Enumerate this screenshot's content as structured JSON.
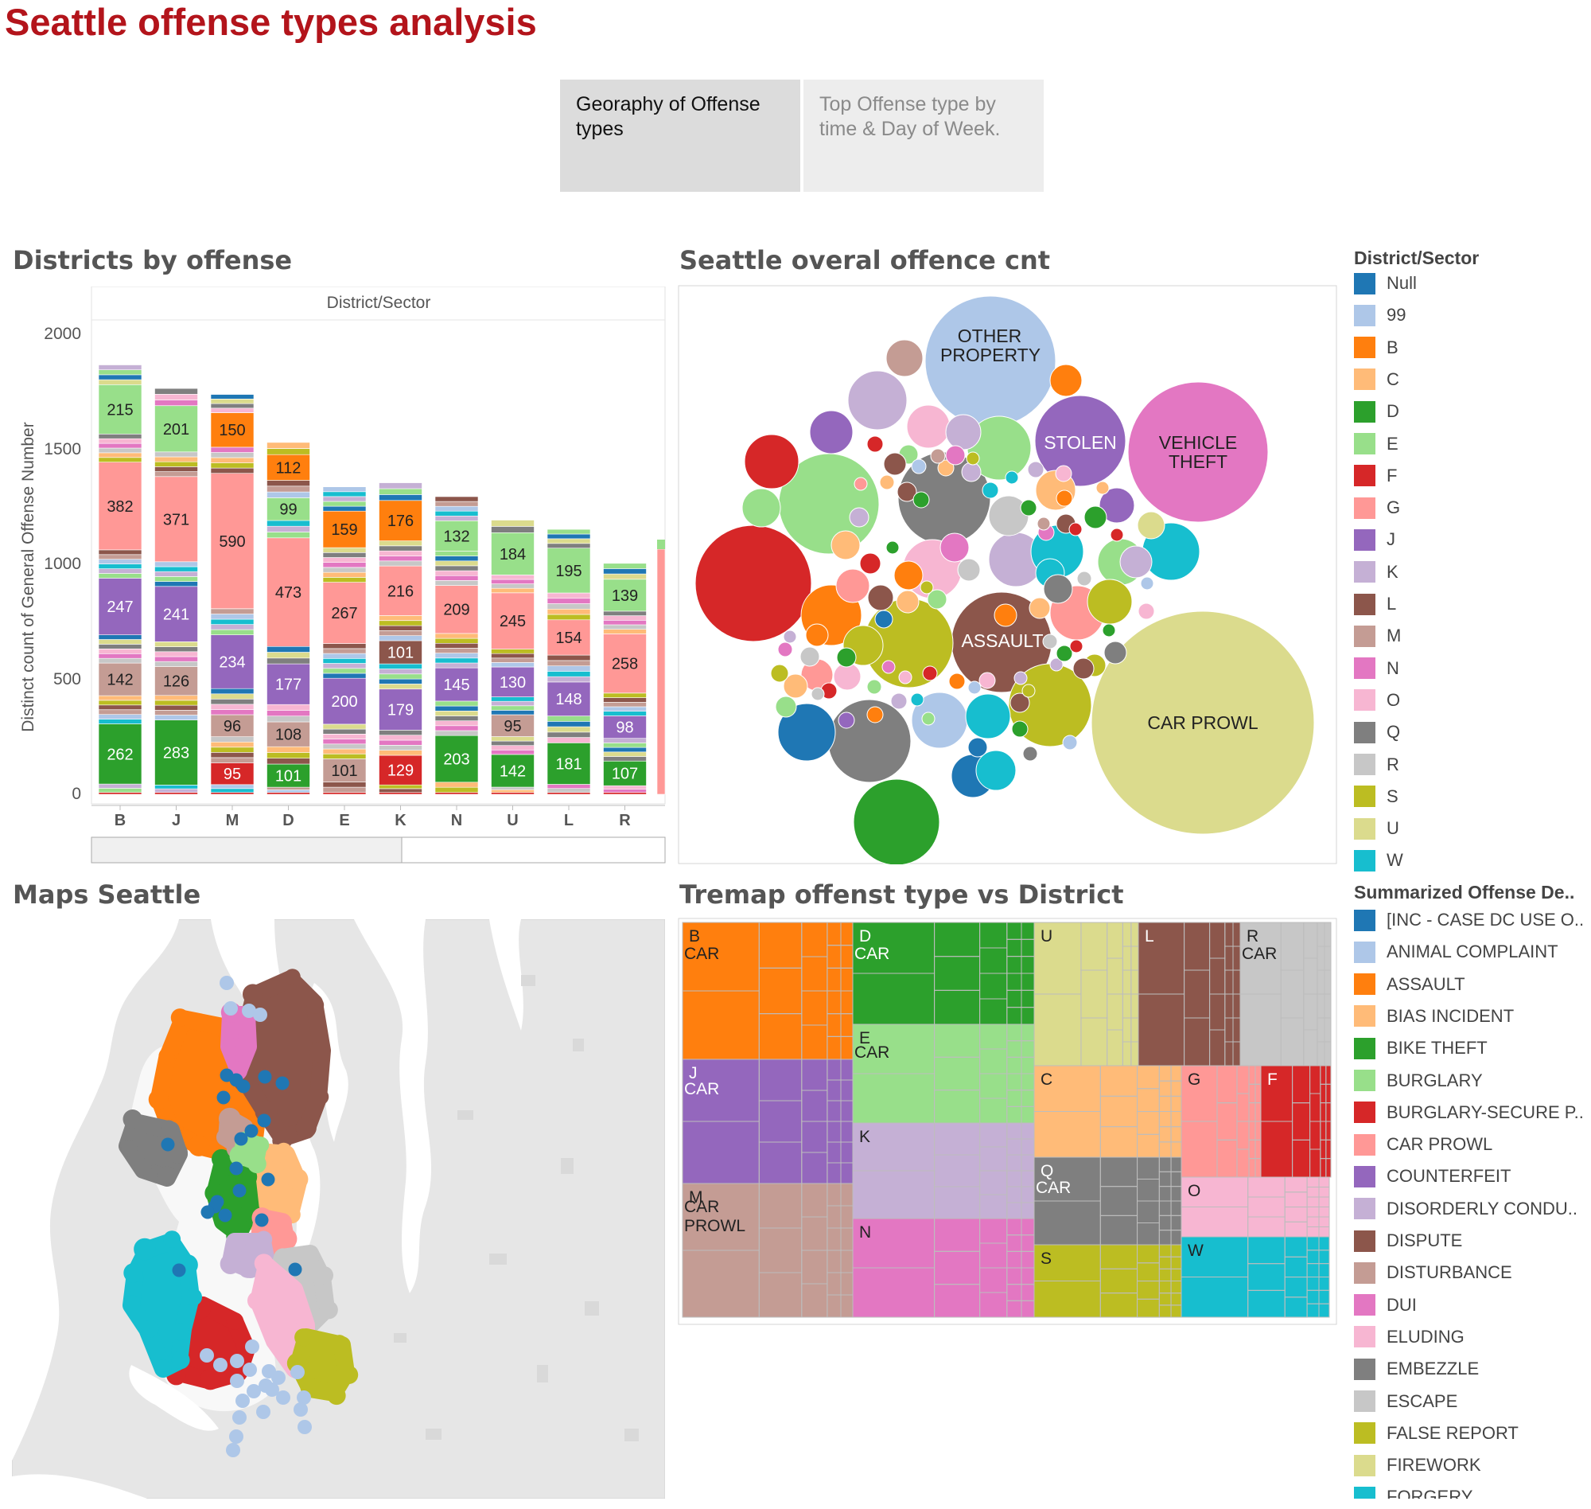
{
  "title": "Seattle offense types analysis",
  "tabs": [
    {
      "label": "Georaphy of Offense types"
    },
    {
      "label": "Top Offense type by time & Day of Week."
    }
  ],
  "sections": {
    "districts_by_offense": "Districts by offense",
    "bubble": "Seattle overal offence cnt",
    "map": "Maps Seattle",
    "treemap": "Tremap offenst type vs District"
  },
  "bar_chart": {
    "header": "District/Sector",
    "y_axis_label": "Distinct count of General Offense Number",
    "y_ticks": [
      "0",
      "500",
      "1000",
      "1500",
      "2000"
    ]
  },
  "chart_data": {
    "type": "bar",
    "stacked": true,
    "categories": [
      "B",
      "J",
      "M",
      "D",
      "E",
      "K",
      "N",
      "U",
      "L",
      "R"
    ],
    "totals": [
      1985,
      1867,
      1847,
      1600,
      1482,
      1458,
      1438,
      1264,
      1263,
      1097
    ],
    "ylim": [
      0,
      2000
    ],
    "labeled_segments": [
      {
        "category": "B",
        "values": [
          262,
          142,
          247,
          382,
          215
        ]
      },
      {
        "category": "J",
        "values": [
          283,
          126,
          241,
          371,
          201
        ]
      },
      {
        "category": "M",
        "values": [
          95,
          96,
          234,
          590,
          150
        ]
      },
      {
        "category": "D",
        "values": [
          101,
          108,
          177,
          473,
          99,
          112
        ]
      },
      {
        "category": "E",
        "values": [
          101,
          200,
          267,
          159
        ]
      },
      {
        "category": "K",
        "values": [
          129,
          179,
          101,
          216,
          176
        ]
      },
      {
        "category": "N",
        "values": [
          203,
          145,
          209,
          132
        ]
      },
      {
        "category": "U",
        "values": [
          142,
          95,
          130,
          245,
          184
        ]
      },
      {
        "category": "L",
        "values": [
          181,
          148,
          154,
          195
        ]
      },
      {
        "category": "R",
        "values": [
          107,
          98,
          258,
          139
        ]
      }
    ]
  },
  "bubbles": {
    "labels": {
      "other_property": [
        "OTHER",
        "PROPERTY"
      ],
      "stolen": "STOLEN",
      "vehicle_theft": [
        "VEHICLE",
        "THEFT"
      ],
      "assault": "ASSAULT",
      "car_prowl": "CAR PROWL"
    }
  },
  "treemap": {
    "labels": [
      "B",
      "CAR",
      "D",
      "U",
      "L",
      "R",
      "J",
      "E",
      "K",
      "C",
      "G",
      "F",
      "Q",
      "M",
      "PROWL",
      "N",
      "S",
      "O",
      "W"
    ]
  },
  "legend_district": {
    "title": "District/Sector",
    "items": [
      {
        "label": "Null",
        "color": "#1f77b4"
      },
      {
        "label": "99",
        "color": "#aec7e8"
      },
      {
        "label": "B",
        "color": "#ff7f0e"
      },
      {
        "label": "C",
        "color": "#ffbb78"
      },
      {
        "label": "D",
        "color": "#2ca02c"
      },
      {
        "label": "E",
        "color": "#98df8a"
      },
      {
        "label": "F",
        "color": "#d62728"
      },
      {
        "label": "G",
        "color": "#ff9896"
      },
      {
        "label": "J",
        "color": "#9467bd"
      },
      {
        "label": "K",
        "color": "#c5b0d5"
      },
      {
        "label": "L",
        "color": "#8c564b"
      },
      {
        "label": "M",
        "color": "#c49c94"
      },
      {
        "label": "N",
        "color": "#e377c2"
      },
      {
        "label": "O",
        "color": "#f7b6d2"
      },
      {
        "label": "Q",
        "color": "#7f7f7f"
      },
      {
        "label": "R",
        "color": "#c7c7c7"
      },
      {
        "label": "S",
        "color": "#bcbd22"
      },
      {
        "label": "U",
        "color": "#dbdb8d"
      },
      {
        "label": "W",
        "color": "#17becf"
      }
    ]
  },
  "legend_offense": {
    "title": "Summarized Offense De..",
    "items": [
      {
        "label": "[INC - CASE DC USE O..",
        "color": "#1f77b4"
      },
      {
        "label": "ANIMAL COMPLAINT",
        "color": "#aec7e8"
      },
      {
        "label": "ASSAULT",
        "color": "#ff7f0e"
      },
      {
        "label": "BIAS INCIDENT",
        "color": "#ffbb78"
      },
      {
        "label": "BIKE THEFT",
        "color": "#2ca02c"
      },
      {
        "label": "BURGLARY",
        "color": "#98df8a"
      },
      {
        "label": "BURGLARY-SECURE P..",
        "color": "#d62728"
      },
      {
        "label": "CAR PROWL",
        "color": "#ff9896"
      },
      {
        "label": "COUNTERFEIT",
        "color": "#9467bd"
      },
      {
        "label": "DISORDERLY CONDU..",
        "color": "#c5b0d5"
      },
      {
        "label": "DISPUTE",
        "color": "#8c564b"
      },
      {
        "label": "DISTURBANCE",
        "color": "#c49c94"
      },
      {
        "label": "DUI",
        "color": "#e377c2"
      },
      {
        "label": "ELUDING",
        "color": "#f7b6d2"
      },
      {
        "label": "EMBEZZLE",
        "color": "#7f7f7f"
      },
      {
        "label": "ESCAPE",
        "color": "#c7c7c7"
      },
      {
        "label": "FALSE REPORT",
        "color": "#bcbd22"
      },
      {
        "label": "FIREWORK",
        "color": "#dbdb8d"
      },
      {
        "label": "FORGERY",
        "color": "#17becf"
      }
    ]
  }
}
